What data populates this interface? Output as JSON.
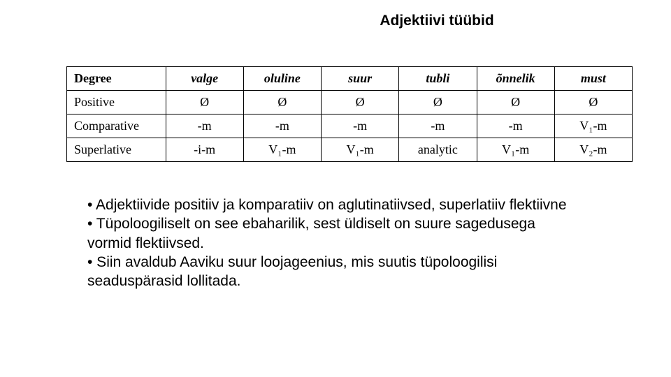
{
  "title": "Adjektiivi tüübid",
  "table": {
    "degree_header": "Degree",
    "columns": [
      "valge",
      "oluline",
      "suur",
      "tubli",
      "õnnelik",
      "must"
    ],
    "rows": [
      {
        "label": "Positive",
        "cells": [
          "Ø",
          "Ø",
          "Ø",
          "Ø",
          "Ø",
          "Ø"
        ]
      },
      {
        "label": "Comparative",
        "cells": [
          "-m",
          "-m",
          "-m",
          "-m",
          "-m",
          "V₁-m"
        ]
      },
      {
        "label": "Superlative",
        "cells": [
          "-i-m",
          "V₁-m",
          "V₁-m",
          "analytic",
          "V₁-m",
          "V₂-m"
        ]
      }
    ]
  },
  "bullets": [
    "• Adjektiivide positiiv ja komparatiiv on aglutinatiivsed, superlatiiv flektiivne",
    "• Tüpoloogiliselt on  see ebaharilik, sest üldiselt on suure sagedusega vormid flektiivsed.",
    "• Siin avaldub Aaviku suur loojageenius, mis suutis tüpoloogilisi seaduspärasid lollitada."
  ]
}
